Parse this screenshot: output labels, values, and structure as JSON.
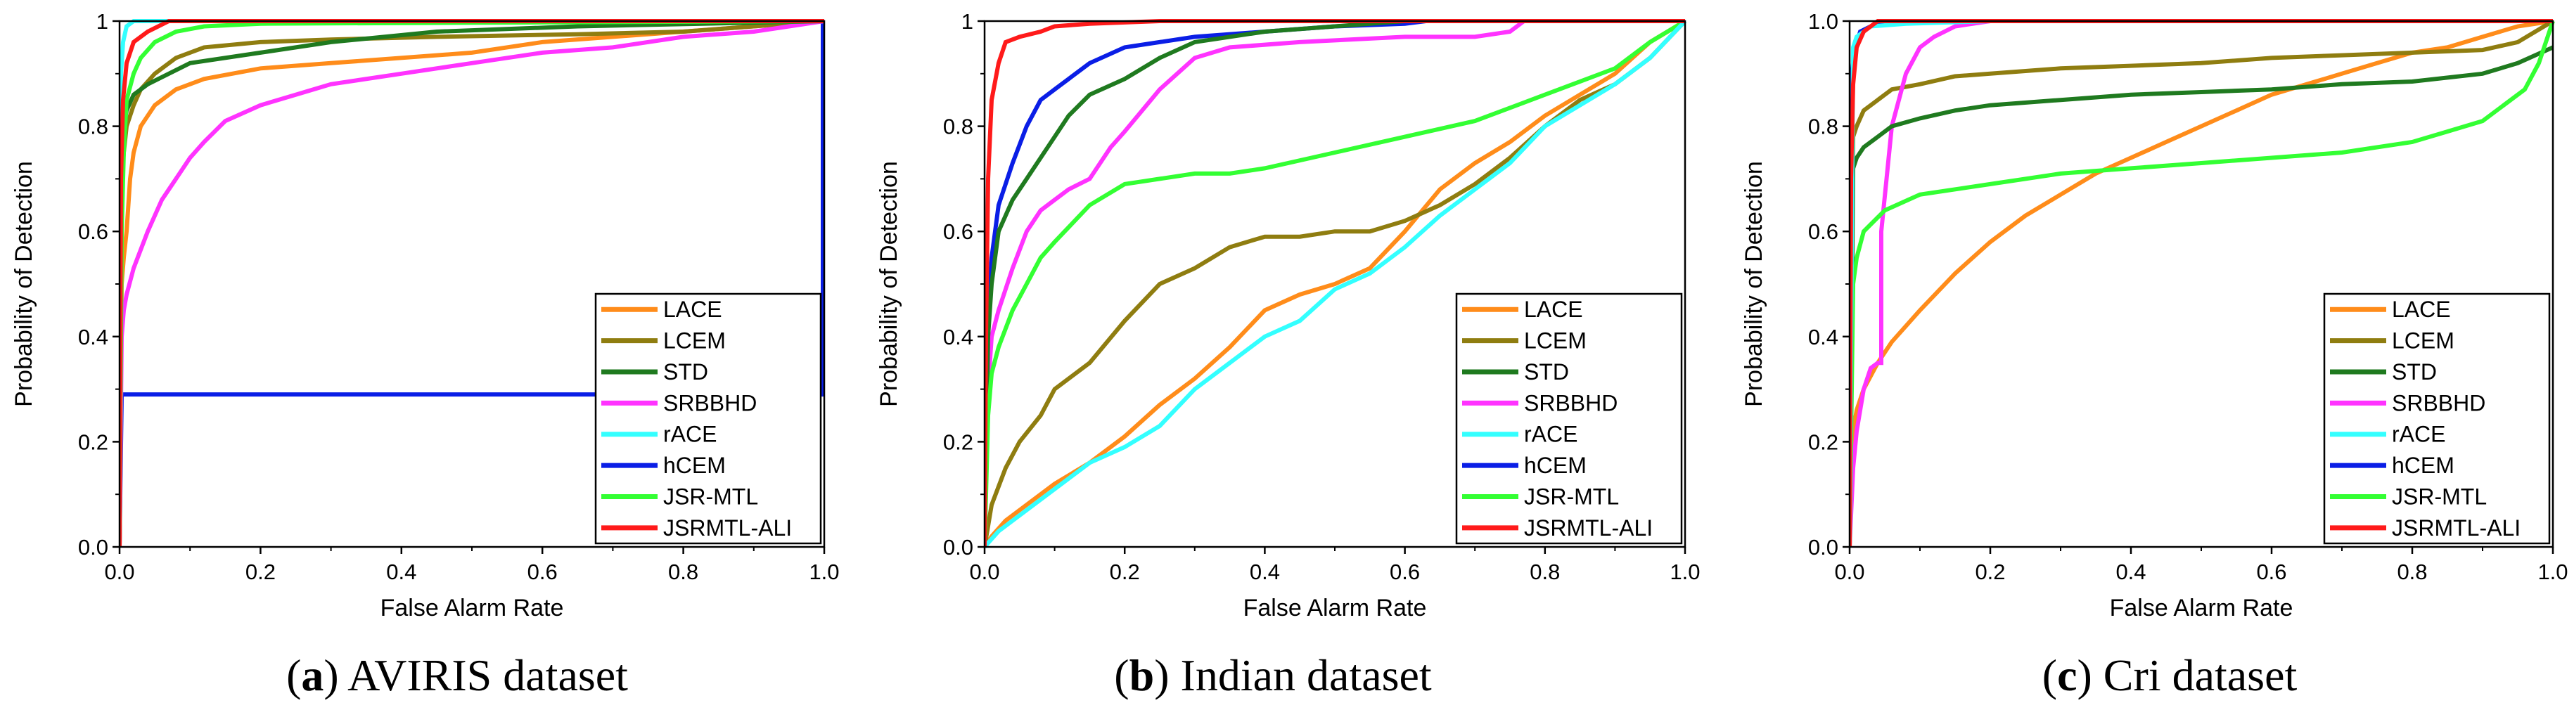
{
  "colors": {
    "LACE": "#ff8c1a",
    "LCEM": "#8f7d10",
    "STD": "#1f7a1f",
    "SRBBHD": "#ff33ff",
    "rACE": "#33ffff",
    "hCEM": "#0a1ee6",
    "JSR-MTL": "#33ff33",
    "JSRMTL-ALI": "#ff1a1a"
  },
  "chart_data": [
    {
      "type": "line",
      "caption_label": "a",
      "caption_text": " AVIRIS dataset",
      "xlabel": "False Alarm Rate",
      "ylabel": "Probability of Detection",
      "xlim": [
        0,
        1
      ],
      "ylim": [
        0,
        1
      ],
      "xticks": [
        "0.0",
        "0.2",
        "0.4",
        "0.6",
        "0.8",
        "1.0"
      ],
      "yticks": [
        "0.0",
        "0.2",
        "0.4",
        "0.6",
        "0.8",
        "1"
      ],
      "legend": "bottom-right",
      "series": [
        {
          "name": "LACE",
          "x": [
            0,
            0.003,
            0.006,
            0.01,
            0.015,
            0.02,
            0.03,
            0.05,
            0.08,
            0.12,
            0.2,
            0.3,
            0.5,
            0.6,
            1.0
          ],
          "y": [
            0,
            0.5,
            0.55,
            0.6,
            0.7,
            0.75,
            0.8,
            0.84,
            0.87,
            0.89,
            0.91,
            0.92,
            0.94,
            0.96,
            1.0
          ]
        },
        {
          "name": "LCEM",
          "x": [
            0,
            0.003,
            0.006,
            0.01,
            0.02,
            0.03,
            0.05,
            0.08,
            0.12,
            0.2,
            0.3,
            0.45,
            0.65,
            0.8,
            1.0
          ],
          "y": [
            0,
            0.7,
            0.75,
            0.8,
            0.84,
            0.87,
            0.9,
            0.93,
            0.95,
            0.96,
            0.965,
            0.97,
            0.975,
            0.98,
            1.0
          ]
        },
        {
          "name": "STD",
          "x": [
            0,
            0.003,
            0.006,
            0.01,
            0.02,
            0.04,
            0.07,
            0.1,
            0.2,
            0.3,
            0.45,
            0.65,
            1.0
          ],
          "y": [
            0,
            0.75,
            0.8,
            0.83,
            0.86,
            0.88,
            0.9,
            0.92,
            0.94,
            0.96,
            0.98,
            0.99,
            1.0
          ]
        },
        {
          "name": "SRBBHD",
          "x": [
            0,
            0.003,
            0.006,
            0.01,
            0.02,
            0.04,
            0.06,
            0.08,
            0.1,
            0.12,
            0.15,
            0.2,
            0.25,
            0.3,
            0.4,
            0.5,
            0.6,
            0.7,
            0.8,
            0.9,
            1.0
          ],
          "y": [
            0,
            0.4,
            0.45,
            0.48,
            0.53,
            0.6,
            0.66,
            0.7,
            0.74,
            0.77,
            0.81,
            0.84,
            0.86,
            0.88,
            0.9,
            0.92,
            0.94,
            0.95,
            0.97,
            0.98,
            1.0
          ]
        },
        {
          "name": "rACE",
          "x": [
            0,
            0.002,
            0.005,
            0.01,
            0.02,
            1.0
          ],
          "y": [
            0,
            0.9,
            0.96,
            0.99,
            1.0,
            1.0
          ]
        },
        {
          "name": "hCEM",
          "x": [
            0,
            0.003,
            0.998,
            0.998,
            1.0
          ],
          "y": [
            0,
            0.29,
            0.29,
            1.0,
            1.0
          ]
        },
        {
          "name": "JSR-MTL",
          "x": [
            0,
            0.003,
            0.006,
            0.01,
            0.02,
            0.03,
            0.05,
            0.08,
            0.12,
            0.2,
            1.0
          ],
          "y": [
            0,
            0.6,
            0.75,
            0.85,
            0.9,
            0.93,
            0.96,
            0.98,
            0.99,
            0.995,
            1.0
          ]
        },
        {
          "name": "JSRMTL-ALI",
          "x": [
            0,
            0.002,
            0.005,
            0.01,
            0.02,
            0.04,
            0.07,
            1.0
          ],
          "y": [
            0,
            0.7,
            0.85,
            0.92,
            0.96,
            0.98,
            1.0,
            1.0
          ]
        }
      ]
    },
    {
      "type": "line",
      "caption_label": "b",
      "caption_text": " Indian dataset",
      "xlabel": "False Alarm Rate",
      "ylabel": "Probability of Detection",
      "xlim": [
        0,
        1
      ],
      "ylim": [
        0,
        1
      ],
      "xticks": [
        "0.0",
        "0.2",
        "0.4",
        "0.6",
        "0.8",
        "1.0"
      ],
      "yticks": [
        "0.0",
        "0.2",
        "0.4",
        "0.6",
        "0.8",
        "1"
      ],
      "legend": "bottom-right",
      "series": [
        {
          "name": "LACE",
          "x": [
            0,
            0.01,
            0.03,
            0.05,
            0.1,
            0.15,
            0.2,
            0.25,
            0.3,
            0.35,
            0.4,
            0.45,
            0.5,
            0.55,
            0.6,
            0.65,
            0.7,
            0.75,
            0.8,
            0.85,
            0.9,
            0.95,
            1.0
          ],
          "y": [
            0,
            0.02,
            0.05,
            0.07,
            0.12,
            0.16,
            0.21,
            0.27,
            0.32,
            0.38,
            0.45,
            0.48,
            0.5,
            0.53,
            0.6,
            0.68,
            0.73,
            0.77,
            0.82,
            0.86,
            0.9,
            0.96,
            1.0
          ]
        },
        {
          "name": "LCEM",
          "x": [
            0,
            0.01,
            0.03,
            0.05,
            0.08,
            0.1,
            0.15,
            0.2,
            0.25,
            0.3,
            0.35,
            0.4,
            0.45,
            0.5,
            0.55,
            0.6,
            0.65,
            0.7,
            0.75,
            0.8,
            0.85,
            0.9,
            0.95,
            1.0
          ],
          "y": [
            0,
            0.08,
            0.15,
            0.2,
            0.25,
            0.3,
            0.35,
            0.43,
            0.5,
            0.53,
            0.57,
            0.59,
            0.59,
            0.6,
            0.6,
            0.62,
            0.65,
            0.69,
            0.74,
            0.8,
            0.85,
            0.88,
            0.93,
            1.0
          ]
        },
        {
          "name": "STD",
          "x": [
            0,
            0.005,
            0.01,
            0.02,
            0.04,
            0.06,
            0.08,
            0.1,
            0.12,
            0.15,
            0.2,
            0.25,
            0.3,
            0.4,
            0.5,
            0.6,
            1.0
          ],
          "y": [
            0,
            0.4,
            0.5,
            0.6,
            0.66,
            0.7,
            0.74,
            0.78,
            0.82,
            0.86,
            0.89,
            0.93,
            0.96,
            0.98,
            0.99,
            1.0,
            1.0
          ]
        },
        {
          "name": "SRBBHD",
          "x": [
            0,
            0.005,
            0.01,
            0.02,
            0.04,
            0.06,
            0.08,
            0.1,
            0.12,
            0.15,
            0.18,
            0.2,
            0.25,
            0.3,
            0.35,
            0.45,
            0.6,
            0.7,
            0.75,
            0.77,
            1.0
          ],
          "y": [
            0,
            0.3,
            0.4,
            0.45,
            0.53,
            0.6,
            0.64,
            0.66,
            0.68,
            0.7,
            0.76,
            0.79,
            0.87,
            0.93,
            0.95,
            0.96,
            0.97,
            0.97,
            0.98,
            1.0,
            1.0
          ]
        },
        {
          "name": "rACE",
          "x": [
            0,
            0.02,
            0.05,
            0.1,
            0.15,
            0.2,
            0.25,
            0.3,
            0.35,
            0.4,
            0.45,
            0.5,
            0.55,
            0.6,
            0.65,
            0.7,
            0.75,
            0.8,
            0.85,
            0.9,
            0.95,
            1.0
          ],
          "y": [
            0,
            0.03,
            0.06,
            0.11,
            0.16,
            0.19,
            0.23,
            0.3,
            0.35,
            0.4,
            0.43,
            0.49,
            0.52,
            0.57,
            0.63,
            0.68,
            0.73,
            0.8,
            0.84,
            0.88,
            0.93,
            1.0
          ]
        },
        {
          "name": "hCEM",
          "x": [
            0,
            0.005,
            0.01,
            0.02,
            0.04,
            0.06,
            0.08,
            0.1,
            0.12,
            0.15,
            0.2,
            0.25,
            0.3,
            0.4,
            0.5,
            0.6,
            0.63,
            1.0
          ],
          "y": [
            0,
            0.45,
            0.55,
            0.65,
            0.73,
            0.8,
            0.85,
            0.87,
            0.89,
            0.92,
            0.95,
            0.96,
            0.97,
            0.98,
            0.99,
            0.995,
            1.0,
            1.0
          ]
        },
        {
          "name": "JSR-MTL",
          "x": [
            0,
            0.005,
            0.01,
            0.02,
            0.04,
            0.06,
            0.08,
            0.1,
            0.15,
            0.2,
            0.25,
            0.3,
            0.35,
            0.4,
            0.5,
            0.6,
            0.7,
            0.8,
            0.9,
            0.95,
            1.0
          ],
          "y": [
            0,
            0.25,
            0.33,
            0.38,
            0.45,
            0.5,
            0.55,
            0.58,
            0.65,
            0.69,
            0.7,
            0.71,
            0.71,
            0.72,
            0.75,
            0.78,
            0.81,
            0.86,
            0.91,
            0.96,
            1.0
          ]
        },
        {
          "name": "JSRMTL-ALI",
          "x": [
            0,
            0.002,
            0.005,
            0.01,
            0.02,
            0.03,
            0.05,
            0.08,
            0.1,
            0.15,
            0.25,
            1.0
          ],
          "y": [
            0,
            0.4,
            0.7,
            0.85,
            0.92,
            0.96,
            0.97,
            0.98,
            0.99,
            0.995,
            1.0,
            1.0
          ]
        }
      ]
    },
    {
      "type": "line",
      "caption_label": "c",
      "caption_text": " Cri dataset",
      "xlabel": "False Alarm Rate",
      "ylabel": "Probability of Detection",
      "xlim": [
        0,
        1
      ],
      "ylim": [
        0,
        1
      ],
      "xticks": [
        "0.0",
        "0.2",
        "0.4",
        "0.6",
        "0.8",
        "1.0"
      ],
      "yticks": [
        "0.0",
        "0.2",
        "0.4",
        "0.6",
        "0.8",
        "1.0"
      ],
      "legend": "bottom-right",
      "series": [
        {
          "name": "LACE",
          "x": [
            0,
            0.005,
            0.01,
            0.02,
            0.04,
            0.06,
            0.1,
            0.15,
            0.2,
            0.25,
            0.3,
            0.35,
            0.4,
            0.45,
            0.5,
            0.55,
            0.6,
            0.65,
            0.7,
            0.75,
            0.8,
            0.85,
            0.9,
            0.95,
            1.0
          ],
          "y": [
            0,
            0.22,
            0.26,
            0.3,
            0.35,
            0.39,
            0.45,
            0.52,
            0.58,
            0.63,
            0.67,
            0.71,
            0.74,
            0.77,
            0.8,
            0.83,
            0.86,
            0.88,
            0.9,
            0.92,
            0.94,
            0.95,
            0.97,
            0.99,
            1.0
          ]
        },
        {
          "name": "LCEM",
          "x": [
            0,
            0.005,
            0.01,
            0.02,
            0.04,
            0.06,
            0.1,
            0.15,
            0.2,
            0.3,
            0.4,
            0.5,
            0.6,
            0.7,
            0.8,
            0.9,
            0.95,
            1.0
          ],
          "y": [
            0,
            0.78,
            0.8,
            0.83,
            0.85,
            0.87,
            0.88,
            0.895,
            0.9,
            0.91,
            0.915,
            0.92,
            0.93,
            0.935,
            0.94,
            0.945,
            0.96,
            1.0
          ]
        },
        {
          "name": "STD",
          "x": [
            0,
            0.005,
            0.01,
            0.02,
            0.04,
            0.06,
            0.1,
            0.15,
            0.2,
            0.3,
            0.4,
            0.5,
            0.6,
            0.7,
            0.8,
            0.9,
            0.95,
            1.0
          ],
          "y": [
            0,
            0.72,
            0.74,
            0.76,
            0.78,
            0.8,
            0.815,
            0.83,
            0.84,
            0.85,
            0.86,
            0.865,
            0.87,
            0.88,
            0.885,
            0.9,
            0.92,
            0.95
          ]
        },
        {
          "name": "SRBBHD",
          "x": [
            0,
            0.005,
            0.01,
            0.02,
            0.03,
            0.04,
            0.045,
            0.045,
            0.06,
            0.08,
            0.1,
            0.12,
            0.15,
            0.2,
            1.0
          ],
          "y": [
            0,
            0.15,
            0.22,
            0.3,
            0.34,
            0.35,
            0.35,
            0.6,
            0.8,
            0.9,
            0.95,
            0.97,
            0.99,
            1.0,
            1.0
          ]
        },
        {
          "name": "rACE",
          "x": [
            0,
            0.005,
            0.01,
            0.03,
            0.08,
            0.2,
            1.0
          ],
          "y": [
            0,
            0.95,
            0.97,
            0.99,
            0.995,
            1.0,
            1.0
          ]
        },
        {
          "name": "hCEM",
          "x": [
            0,
            0.003,
            0.008,
            0.015,
            0.03,
            0.05,
            1.0
          ],
          "y": [
            0,
            0.9,
            0.95,
            0.98,
            0.99,
            1.0,
            1.0
          ]
        },
        {
          "name": "JSR-MTL",
          "x": [
            0,
            0.005,
            0.01,
            0.02,
            0.05,
            0.1,
            0.2,
            0.3,
            0.4,
            0.5,
            0.6,
            0.7,
            0.8,
            0.85,
            0.9,
            0.93,
            0.96,
            0.98,
            1.0
          ],
          "y": [
            0,
            0.5,
            0.55,
            0.6,
            0.64,
            0.67,
            0.69,
            0.71,
            0.72,
            0.73,
            0.74,
            0.75,
            0.77,
            0.79,
            0.81,
            0.84,
            0.87,
            0.92,
            1.0
          ]
        },
        {
          "name": "JSRMTL-ALI",
          "x": [
            0,
            0.002,
            0.005,
            0.01,
            0.02,
            0.04,
            1.0
          ],
          "y": [
            0,
            0.7,
            0.88,
            0.95,
            0.98,
            1.0,
            1.0
          ]
        }
      ]
    }
  ]
}
